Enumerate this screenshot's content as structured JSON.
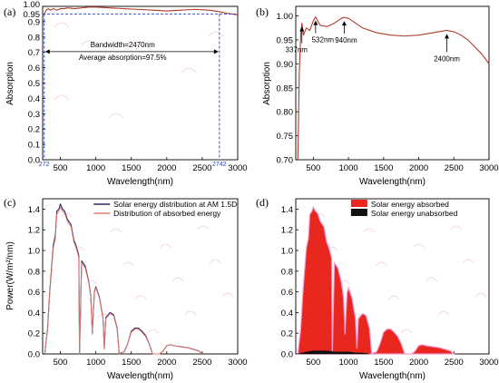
{
  "chart_data": [
    {
      "type": "line",
      "panel_label": "(a)",
      "xlabel": "Wavelength(nm)",
      "ylabel": "Absorption",
      "xlim": [
        250,
        3000
      ],
      "ylim": [
        0,
        1.0
      ],
      "xticks": [
        500,
        1000,
        1500,
        2000,
        2500,
        3000
      ],
      "yticks": [
        0.0,
        0.1,
        0.2,
        0.3,
        0.4,
        0.5,
        0.6,
        0.7,
        0.8,
        0.9,
        0.95,
        1.0
      ],
      "ytick_labels": [
        "0.0",
        "0.1",
        "0.2",
        "0.3",
        "0.4",
        "0.5",
        "0.6",
        "0.7",
        "0.8",
        "0.9",
        "0.95",
        "1.00"
      ],
      "extra_xtick_labels": [
        {
          "x": 272,
          "label": "272"
        },
        {
          "x": 2742,
          "label": "2742"
        }
      ],
      "series": [
        {
          "color": "#b03a2e",
          "x": [
            272,
            300,
            330,
            360,
            400,
            450,
            500,
            550,
            600,
            700,
            800,
            900,
            1000,
            1200,
            1400,
            1600,
            1800,
            2000,
            2200,
            2400,
            2600,
            2742,
            2850,
            3000
          ],
          "y": [
            0.95,
            0.975,
            0.985,
            0.975,
            0.985,
            0.975,
            0.985,
            0.985,
            0.99,
            0.985,
            0.99,
            0.995,
            0.995,
            0.99,
            0.985,
            0.98,
            0.975,
            0.97,
            0.975,
            0.98,
            0.975,
            0.965,
            0.955,
            0.945
          ]
        }
      ],
      "threshold_y": 0.95,
      "range_x": [
        272,
        2742
      ],
      "annotations": [
        "Bandwidth=2470nm",
        "Average absorption=97.5%"
      ]
    },
    {
      "type": "line",
      "panel_label": "(b)",
      "xlabel": "Wavelength(nm)",
      "ylabel": "Absorption",
      "xlim": [
        250,
        3000
      ],
      "ylim": [
        0.7,
        1.02
      ],
      "xticks": [
        500,
        1000,
        1500,
        2000,
        2500,
        3000
      ],
      "yticks": [
        0.7,
        0.75,
        0.8,
        0.85,
        0.9,
        0.95,
        1.0
      ],
      "ytick_labels": [
        "0.70",
        "0.75",
        "0.80",
        "0.85",
        "0.90",
        "0.95",
        "1.00"
      ],
      "series": [
        {
          "color": "#b03a2e",
          "x": [
            280,
            300,
            320,
            337,
            360,
            400,
            450,
            500,
            532,
            560,
            600,
            700,
            800,
            900,
            940,
            1000,
            1100,
            1200,
            1400,
            1600,
            1800,
            2000,
            2200,
            2400,
            2500,
            2600,
            2700,
            2800,
            2900,
            3000
          ],
          "y": [
            0.7,
            0.88,
            0.96,
            0.985,
            0.96,
            0.975,
            0.97,
            0.99,
            0.998,
            0.99,
            0.98,
            0.978,
            0.985,
            0.995,
            0.997,
            0.995,
            0.985,
            0.975,
            0.965,
            0.96,
            0.958,
            0.96,
            0.965,
            0.97,
            0.967,
            0.96,
            0.95,
            0.935,
            0.92,
            0.9
          ]
        }
      ],
      "annotations": [
        {
          "label": "337nm",
          "x": 337,
          "y": 0.985
        },
        {
          "label": "532nm",
          "x": 532,
          "y": 0.998
        },
        {
          "label": "940nm",
          "x": 940,
          "y": 0.997
        },
        {
          "label": "2400nm",
          "x": 2400,
          "y": 0.97
        }
      ]
    },
    {
      "type": "line",
      "panel_label": "(c)",
      "xlabel": "Wavelength(nm)",
      "ylabel": "Power(W/m²/nm)",
      "xlim": [
        250,
        3000
      ],
      "ylim": [
        0,
        1.5
      ],
      "xticks": [
        500,
        1000,
        1500,
        2000,
        2500,
        3000
      ],
      "yticks": [
        0.0,
        0.2,
        0.4,
        0.6,
        0.8,
        1.0,
        1.2,
        1.4
      ],
      "ytick_labels": [
        "0.0",
        "0.2",
        "0.4",
        "0.6",
        "0.8",
        "1.0",
        "1.2",
        "1.4"
      ],
      "series": [
        {
          "name": "Solar energy distribution at AM 1.5D",
          "color": "#2b2b5e",
          "x": [
            280,
            320,
            350,
            400,
            430,
            450,
            480,
            500,
            530,
            560,
            600,
            650,
            690,
            720,
            760,
            770,
            800,
            850,
            900,
            930,
            950,
            980,
            1000,
            1050,
            1100,
            1120,
            1140,
            1200,
            1250,
            1300,
            1330,
            1350,
            1400,
            1450,
            1500,
            1550,
            1600,
            1650,
            1700,
            1750,
            1800,
            1850,
            1900,
            1950,
            2000,
            2050,
            2100,
            2200,
            2300,
            2400,
            2450,
            2500
          ],
          "y": [
            0.0,
            0.25,
            0.6,
            1.05,
            1.15,
            1.38,
            1.4,
            1.45,
            1.4,
            1.38,
            1.3,
            1.25,
            1.1,
            1.05,
            0.95,
            0.0,
            0.9,
            0.85,
            0.7,
            0.55,
            0.2,
            0.6,
            0.65,
            0.55,
            0.35,
            0.05,
            0.35,
            0.4,
            0.38,
            0.25,
            0.0,
            0.01,
            0.02,
            0.1,
            0.22,
            0.25,
            0.25,
            0.22,
            0.18,
            0.1,
            0.0,
            0.0,
            0.0,
            0.03,
            0.08,
            0.09,
            0.08,
            0.07,
            0.06,
            0.04,
            0.03,
            0.0
          ]
        },
        {
          "name": "Distribution of absorbed energy",
          "color": "#e87a6e",
          "x": [
            280,
            320,
            350,
            400,
            430,
            450,
            480,
            500,
            530,
            560,
            600,
            650,
            690,
            720,
            760,
            770,
            800,
            850,
            900,
            930,
            950,
            980,
            1000,
            1050,
            1100,
            1120,
            1140,
            1200,
            1250,
            1300,
            1330,
            1350,
            1400,
            1450,
            1500,
            1550,
            1600,
            1650,
            1700,
            1750,
            1800,
            1850,
            1900,
            1950,
            2000,
            2050,
            2100,
            2200,
            2300,
            2400,
            2450,
            2500
          ],
          "y": [
            0.0,
            0.24,
            0.58,
            1.02,
            1.12,
            1.35,
            1.38,
            1.42,
            1.38,
            1.36,
            1.28,
            1.23,
            1.08,
            1.03,
            0.93,
            0.0,
            0.88,
            0.83,
            0.69,
            0.54,
            0.19,
            0.59,
            0.64,
            0.54,
            0.34,
            0.05,
            0.34,
            0.39,
            0.37,
            0.24,
            0.0,
            0.01,
            0.02,
            0.1,
            0.21,
            0.24,
            0.24,
            0.21,
            0.17,
            0.1,
            0.0,
            0.0,
            0.0,
            0.03,
            0.08,
            0.09,
            0.08,
            0.07,
            0.06,
            0.04,
            0.03,
            0.0
          ]
        }
      ],
      "legend_position": "top-right"
    },
    {
      "type": "area",
      "panel_label": "(d)",
      "xlabel": "Wavelength(nm)",
      "xlim": [
        250,
        3000
      ],
      "ylim": [
        0,
        1.5
      ],
      "xticks": [
        500,
        1000,
        1500,
        2000,
        2500,
        3000
      ],
      "yticks": [
        0.0,
        0.2,
        0.4,
        0.6,
        0.8,
        1.0,
        1.2,
        1.4
      ],
      "ytick_labels": [
        "0.0",
        "0.2",
        "0.4",
        "0.6",
        "0.8",
        "1.0",
        "1.2",
        "1.4"
      ],
      "series": [
        {
          "name": "Solar energy absorbed",
          "color": "#e8281e",
          "x": [
            280,
            320,
            350,
            400,
            430,
            450,
            480,
            500,
            530,
            560,
            600,
            650,
            690,
            720,
            760,
            770,
            800,
            850,
            900,
            930,
            950,
            980,
            1000,
            1050,
            1100,
            1120,
            1140,
            1200,
            1250,
            1300,
            1330,
            1350,
            1400,
            1450,
            1500,
            1550,
            1600,
            1650,
            1700,
            1750,
            1800,
            1850,
            1900,
            1950,
            2000,
            2050,
            2100,
            2200,
            2300,
            2400,
            2450,
            2500
          ],
          "y": [
            0.0,
            0.24,
            0.58,
            1.02,
            1.12,
            1.35,
            1.38,
            1.42,
            1.38,
            1.36,
            1.28,
            1.23,
            1.08,
            1.03,
            0.93,
            0.0,
            0.88,
            0.83,
            0.69,
            0.54,
            0.19,
            0.59,
            0.64,
            0.54,
            0.34,
            0.05,
            0.34,
            0.39,
            0.37,
            0.24,
            0.0,
            0.01,
            0.02,
            0.1,
            0.21,
            0.24,
            0.24,
            0.21,
            0.17,
            0.1,
            0.0,
            0.0,
            0.0,
            0.03,
            0.08,
            0.09,
            0.08,
            0.07,
            0.06,
            0.04,
            0.03,
            0.0
          ]
        },
        {
          "name": "Solar energy unabsorbed",
          "color": "#111111",
          "x": [
            280,
            400,
            500,
            600,
            700,
            800,
            900,
            1000,
            1100,
            1200,
            1300
          ],
          "y": [
            0.0,
            0.02,
            0.03,
            0.03,
            0.03,
            0.02,
            0.02,
            0.02,
            0.01,
            0.01,
            0.0
          ]
        }
      ],
      "legend_position": "top-right"
    }
  ]
}
